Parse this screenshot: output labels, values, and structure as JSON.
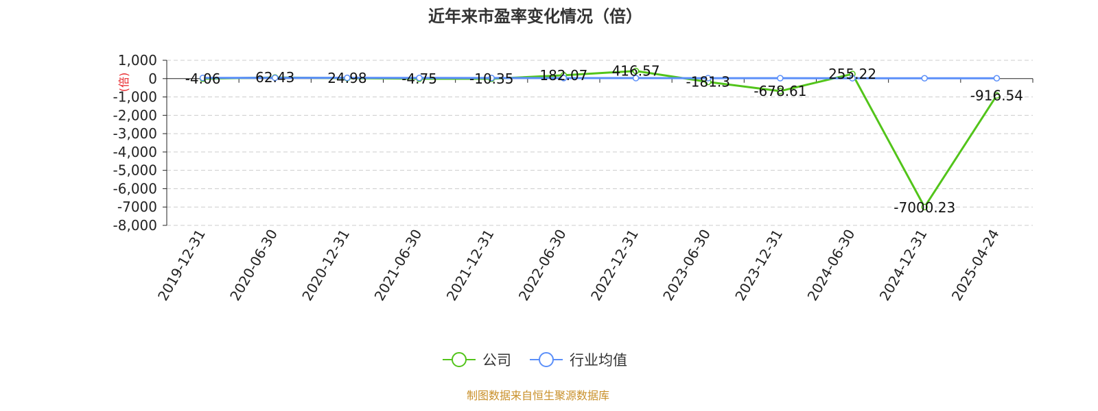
{
  "source_text": "制图数据来自恒生聚源数据库",
  "colors": {
    "company": "#52c41a",
    "industry": "#5b8ff9",
    "unit": "#e8262a",
    "source": "#c9902a",
    "grid": "#cccccc",
    "axis": "#222222"
  },
  "chart_data": {
    "type": "line",
    "title": "近年来市盈率变化情况（倍）",
    "ylabel": "(倍)",
    "xlabel": "",
    "ylim": [
      -8000,
      1000
    ],
    "yticks": [
      1000,
      0,
      -1000,
      -2000,
      -3000,
      -4000,
      -5000,
      -6000,
      -7000,
      -8000
    ],
    "ytick_labels": [
      "1,000",
      "0",
      "-1,000",
      "-2,000",
      "-3,000",
      "-4,000",
      "-5,000",
      "-6,000",
      "-7000",
      "-8,000"
    ],
    "grid": true,
    "legend_position": "bottom-center",
    "categories": [
      "2019-12-31",
      "2020-06-30",
      "2020-12-31",
      "2021-06-30",
      "2021-12-31",
      "2022-06-30",
      "2022-12-31",
      "2023-06-30",
      "2023-12-31",
      "2024-06-30",
      "2024-12-31",
      "2025-04-24"
    ],
    "series": [
      {
        "name": "公司",
        "values": [
          -4.06,
          62.43,
          24.98,
          -4.75,
          -10.35,
          182.07,
          416.57,
          -181.3,
          -678.61,
          255.22,
          -7000.23,
          -916.54
        ],
        "labels": [
          "-4.06",
          "62.43",
          "24.98",
          "-4.75",
          "-10.35",
          "182.07",
          "416.57",
          "-181.3",
          "-678.61",
          "255.22",
          "-7000.23",
          "-916.54"
        ]
      },
      {
        "name": "行业均值",
        "values": [
          40,
          45,
          42,
          38,
          35,
          30,
          28,
          26,
          24,
          22,
          20,
          20
        ]
      }
    ]
  }
}
